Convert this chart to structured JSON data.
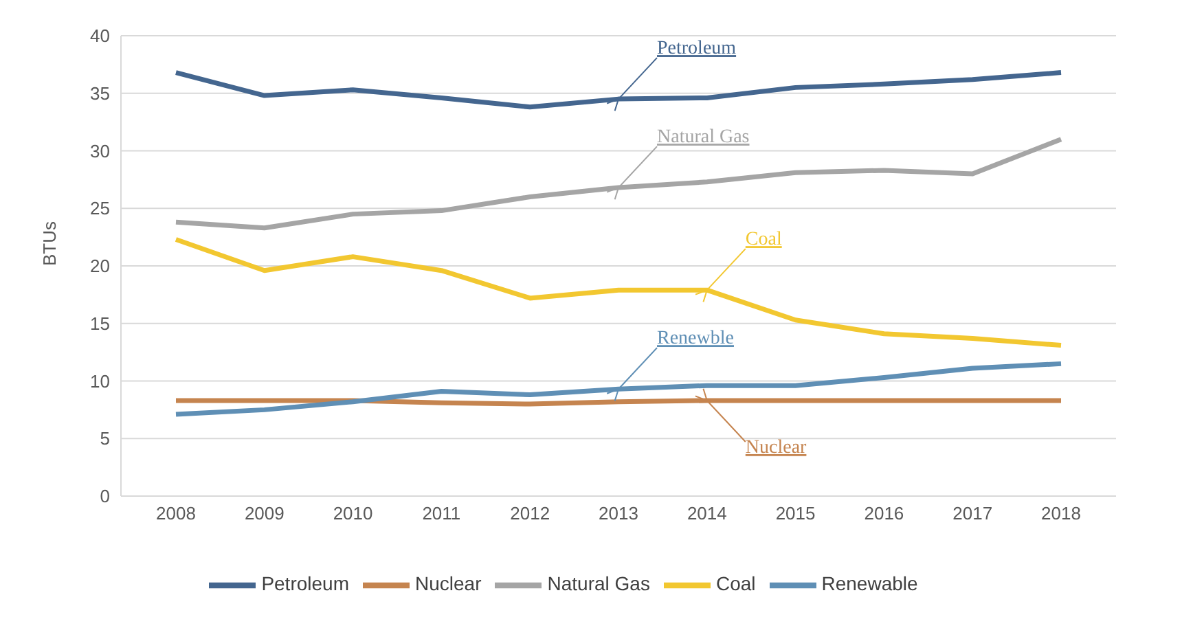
{
  "chart_data": {
    "type": "line",
    "ylabel": "BTUs",
    "categories": [
      "2008",
      "2009",
      "2010",
      "2011",
      "2012",
      "2013",
      "2014",
      "2015",
      "2016",
      "2017",
      "2018"
    ],
    "series": [
      {
        "name": "Petroleum",
        "color": "#44668f",
        "values": [
          36.8,
          34.8,
          35.3,
          34.6,
          33.8,
          34.5,
          34.6,
          35.5,
          35.8,
          36.2,
          36.8
        ]
      },
      {
        "name": "Nuclear",
        "color": "#c5844f",
        "values": [
          8.3,
          8.3,
          8.3,
          8.1,
          8.0,
          8.2,
          8.3,
          8.3,
          8.3,
          8.3,
          8.3
        ]
      },
      {
        "name": "Natural Gas",
        "color": "#a5a5a5",
        "values": [
          23.8,
          23.3,
          24.5,
          24.8,
          26.0,
          26.8,
          27.3,
          28.1,
          28.3,
          28.0,
          31.0
        ]
      },
      {
        "name": "Coal",
        "color": "#f2c730",
        "values": [
          22.3,
          19.6,
          20.8,
          19.6,
          17.2,
          17.9,
          17.9,
          15.3,
          14.1,
          13.7,
          13.1
        ]
      },
      {
        "name": "Renewable",
        "color": "#5f8fb5",
        "values": [
          7.1,
          7.5,
          8.2,
          9.1,
          8.8,
          9.3,
          9.6,
          9.6,
          10.3,
          11.1,
          11.5
        ]
      }
    ],
    "ylim": [
      0,
      40
    ],
    "yticks": [
      0,
      5,
      10,
      15,
      20,
      25,
      30,
      35,
      40
    ],
    "grid": "y",
    "legend": "bottom",
    "marker": "none",
    "line_style": "solid",
    "annotations": [
      {
        "text": "Petroleum",
        "x": "2013",
        "y": 34.5
      },
      {
        "text": "Natural Gas",
        "x": "2013",
        "y": 26.8
      },
      {
        "text": "Coal",
        "x": "2014",
        "y": 17.9
      },
      {
        "text": "Renewble",
        "x": "2013",
        "y": 9.3
      },
      {
        "text": "Nuclear",
        "x": "2014",
        "y": 8.3
      }
    ]
  }
}
